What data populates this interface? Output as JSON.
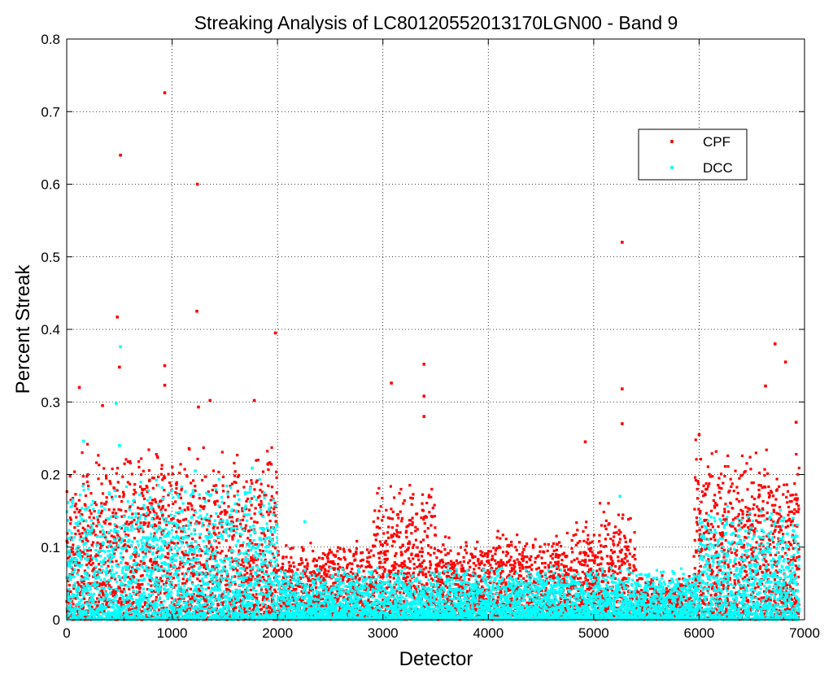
{
  "chart_data": {
    "type": "scatter",
    "title": "Streaking Analysis of LC80120552013170LGN00 - Band 9",
    "xlabel": "Detector",
    "ylabel": "Percent Streak",
    "xlim": [
      0,
      7000
    ],
    "ylim": [
      0,
      0.8
    ],
    "xticks": [
      0,
      1000,
      2000,
      3000,
      4000,
      5000,
      6000,
      7000
    ],
    "yticks": [
      0,
      0.1,
      0.2,
      0.3,
      0.4,
      0.5,
      0.6,
      0.7,
      0.8
    ],
    "xtick_labels": [
      "0",
      "1000",
      "2000",
      "3000",
      "4000",
      "5000",
      "6000",
      "7000"
    ],
    "ytick_labels": [
      "0",
      "0.1",
      "0.2",
      "0.3",
      "0.4",
      "0.5",
      "0.6",
      "0.7",
      "0.8"
    ],
    "grid": true,
    "legend_position": "top-right",
    "series": [
      {
        "name": "CPF",
        "color": "#ff0000",
        "notable_points": [
          {
            "x": 930,
            "y": 0.726
          },
          {
            "x": 510,
            "y": 0.64
          },
          {
            "x": 1240,
            "y": 0.6
          },
          {
            "x": 5270,
            "y": 0.52
          },
          {
            "x": 1235,
            "y": 0.425
          },
          {
            "x": 480,
            "y": 0.417
          },
          {
            "x": 1980,
            "y": 0.395
          },
          {
            "x": 6720,
            "y": 0.38
          },
          {
            "x": 6820,
            "y": 0.355
          },
          {
            "x": 3390,
            "y": 0.352
          },
          {
            "x": 930,
            "y": 0.35
          },
          {
            "x": 500,
            "y": 0.348
          },
          {
            "x": 3080,
            "y": 0.326
          },
          {
            "x": 930,
            "y": 0.323
          },
          {
            "x": 6630,
            "y": 0.322
          },
          {
            "x": 120,
            "y": 0.32
          },
          {
            "x": 5270,
            "y": 0.318
          },
          {
            "x": 3390,
            "y": 0.308
          },
          {
            "x": 1360,
            "y": 0.302
          },
          {
            "x": 1780,
            "y": 0.302
          },
          {
            "x": 340,
            "y": 0.295
          },
          {
            "x": 1250,
            "y": 0.293
          },
          {
            "x": 3390,
            "y": 0.28
          },
          {
            "x": 6920,
            "y": 0.272
          },
          {
            "x": 5270,
            "y": 0.27
          },
          {
            "x": 4920,
            "y": 0.245
          },
          {
            "x": 6000,
            "y": 0.255
          }
        ],
        "band_profile": [
          {
            "x_range": [
              0,
              2000
            ],
            "typical_max": 0.2
          },
          {
            "x_range": [
              2000,
              2900
            ],
            "typical_max": 0.09
          },
          {
            "x_range": [
              2900,
              3500
            ],
            "typical_max": 0.16
          },
          {
            "x_range": [
              3500,
              4800
            ],
            "typical_max": 0.1
          },
          {
            "x_range": [
              4800,
              5400
            ],
            "typical_max": 0.13
          },
          {
            "x_range": [
              5400,
              5950
            ],
            "typical_max": 0.05
          },
          {
            "x_range": [
              5950,
              6950
            ],
            "typical_max": 0.2
          }
        ]
      },
      {
        "name": "DCC",
        "color": "#00ffff",
        "notable_points": [
          {
            "x": 510,
            "y": 0.376
          },
          {
            "x": 470,
            "y": 0.298
          },
          {
            "x": 1760,
            "y": 0.209
          },
          {
            "x": 500,
            "y": 0.24
          },
          {
            "x": 160,
            "y": 0.246
          },
          {
            "x": 1220,
            "y": 0.205
          },
          {
            "x": 5250,
            "y": 0.17
          },
          {
            "x": 2260,
            "y": 0.135
          },
          {
            "x": 6670,
            "y": 0.14
          }
        ],
        "band_profile": [
          {
            "x_range": [
              0,
              2000
            ],
            "typical_max": 0.16
          },
          {
            "x_range": [
              2000,
              6000
            ],
            "typical_max": 0.06
          },
          {
            "x_range": [
              6000,
              6950
            ],
            "typical_max": 0.13
          }
        ]
      }
    ],
    "x_points_range": [
      0,
      6950
    ],
    "n_points_per_series": 6950
  }
}
